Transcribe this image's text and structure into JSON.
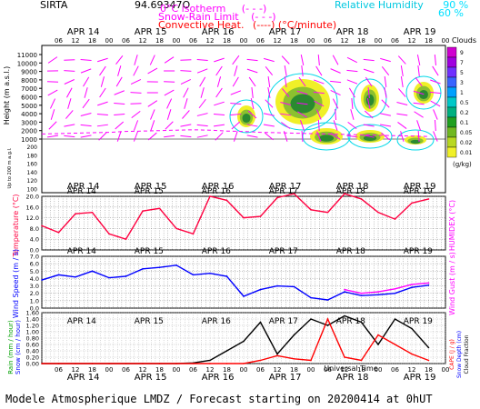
{
  "header": {
    "station": "SIRTA",
    "coords": "94.69347O",
    "legend_left": [
      {
        "label": "0°C isotherm",
        "symbol": "(- - -)",
        "color": "#ff00ff"
      },
      {
        "label": "Snow-Rain Limit",
        "symbol": "(- - -)",
        "color": "#ff00ff"
      },
      {
        "label": "Convective Heat.",
        "symbol": "(----)",
        "unit": "(°C/minute)",
        "color": "#ff0000"
      }
    ],
    "legend_right": [
      {
        "label": "Relative Humidity",
        "value": "90 %",
        "color": "#00e0ff"
      },
      {
        "label": "",
        "value": "60 %",
        "color": "#00e0ff"
      }
    ]
  },
  "footer": {
    "text": "Modele Atmospherique LMDZ / Forecast starting on 20200414 at 0hUT"
  },
  "chart_data": [
    {
      "type": "heatmap",
      "panel": "upper-air",
      "days": [
        "APR 14",
        "APR 15",
        "APR 16",
        "APR 17",
        "APR 18",
        "APR 19"
      ],
      "hour_ticks": [
        "06",
        "12",
        "18",
        "00"
      ],
      "ylabel": "Height (m a.s.l.)",
      "ylabel_low": "Up to 200 m a.g.l.",
      "y_ticks_upper": [
        11000,
        10000,
        9000,
        8000,
        7000,
        6000,
        5000,
        4000,
        3000,
        2000,
        1000
      ],
      "y_ticks_lower": [
        200,
        180,
        160,
        140,
        120,
        100
      ],
      "colorbar_title": "Clouds",
      "colorbar_unit": "(g/kg)",
      "colorbar_levels": [
        "9",
        "7",
        "5",
        "3",
        "1",
        "0.5",
        "0.2",
        "0.1",
        "0.05",
        "0.02",
        "0.01"
      ],
      "colorbar_colors": [
        "#d000d0",
        "#a000e0",
        "#7030ff",
        "#3a64ff",
        "#00a0ff",
        "#00c8c8",
        "#00b080",
        "#20a020",
        "#70b820",
        "#b8d820",
        "#f0f028"
      ],
      "freezing_level_m": [
        1600,
        1650,
        1700,
        1750,
        1800,
        1900,
        1950,
        2000,
        2050,
        2100,
        2050,
        1950,
        1900,
        1800,
        1750,
        1700,
        1650,
        1600,
        1550,
        1500,
        1450,
        1400,
        1350,
        1300
      ]
    },
    {
      "type": "line",
      "panel": "temperature",
      "ylabel": "Temperature (°C)",
      "ylabel_right": "HUMIDEX (°C)",
      "ylim": [
        0,
        20
      ],
      "y_ticks": [
        "20.0",
        "16.0",
        "12.0",
        "8.0",
        "4.0",
        "0.0"
      ],
      "x_hours": [
        0,
        6,
        12,
        18,
        24,
        30,
        36,
        42,
        48,
        54,
        60,
        66,
        72,
        78,
        84,
        90,
        96,
        102,
        108,
        114,
        120,
        126,
        132,
        138
      ],
      "series": [
        {
          "name": "Temperature",
          "color": "#ff0040",
          "values": [
            9,
            6.5,
            13.5,
            14,
            6,
            4,
            14.5,
            15.5,
            8,
            6,
            20,
            18.5,
            12,
            12.5,
            19.5,
            21,
            15,
            14,
            21,
            19,
            14,
            11.5,
            17.5,
            19
          ]
        }
      ]
    },
    {
      "type": "line",
      "panel": "wind",
      "ylabel": "Wind Speed (m / s)",
      "ylabel_right": "Wind Gust (m / s)",
      "ylim": [
        0,
        7
      ],
      "y_ticks": [
        "7.0",
        "6.0",
        "5.0",
        "4.0",
        "3.0",
        "2.0",
        "1.0",
        "0.0"
      ],
      "series": [
        {
          "name": "Wind Speed",
          "color": "#0000ff",
          "values": [
            3.8,
            4.5,
            4.2,
            5.0,
            4.1,
            4.3,
            5.3,
            5.5,
            5.8,
            4.5,
            4.7,
            4.3,
            1.6,
            2.5,
            3.0,
            2.9,
            1.4,
            1.1,
            2.2,
            1.7,
            1.8,
            2.0,
            2.8,
            3.1
          ]
        },
        {
          "name": "Wind Gust",
          "color": "#ff00ff",
          "values": [
            null,
            null,
            null,
            null,
            null,
            null,
            null,
            null,
            null,
            null,
            null,
            null,
            null,
            null,
            null,
            null,
            null,
            null,
            2.5,
            2.0,
            2.2,
            2.6,
            3.2,
            3.4
          ]
        }
      ]
    },
    {
      "type": "line",
      "panel": "precipitation",
      "ylabel": "Rain (mm / hour)",
      "ylabel2": "Snow (cm / hour)",
      "ylabel_right": "CAPE (J / g)",
      "ylabel_right2": "Snow Depth (cm)",
      "ylabel_right3": "Cloud Fraction",
      "ylim": [
        0,
        1.6
      ],
      "y_ticks": [
        "1.60",
        "1.40",
        "1.20",
        "1.00",
        "0.80",
        "0.60",
        "0.40",
        "0.20",
        "0.00"
      ],
      "xlabel": "Universal Time",
      "series": [
        {
          "name": "Cloud Fraction",
          "color": "#000000",
          "values": [
            0,
            0,
            0,
            0,
            0,
            0,
            0,
            0,
            0,
            0.02,
            0.1,
            0.4,
            0.7,
            1.3,
            0.3,
            0.9,
            1.4,
            1.2,
            1.5,
            1.3,
            0.6,
            1.4,
            1.1,
            0.5
          ]
        },
        {
          "name": "Rain",
          "color": "#ff0000",
          "values": [
            0,
            0,
            0,
            0,
            0,
            0,
            0,
            0,
            0,
            0,
            0,
            0,
            0,
            0.1,
            0.25,
            0.15,
            0.1,
            1.4,
            0.2,
            0.1,
            0.9,
            0.6,
            0.3,
            0.1
          ]
        }
      ]
    }
  ]
}
